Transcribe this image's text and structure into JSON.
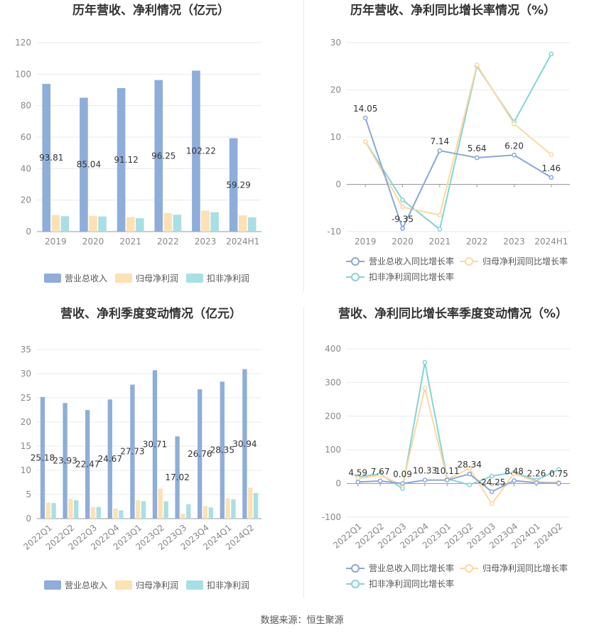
{
  "source_text": "数据来源：恒生聚源",
  "colors": {
    "revenue": "#8eadd9",
    "parent_net": "#fce1b3",
    "deducted_net": "#a8dfe4",
    "revenue_line": "#8aa8d8",
    "parent_line": "#fbd9a0",
    "deducted_line": "#85d3d6"
  },
  "chart_data": [
    {
      "type": "bar",
      "title": "历年营收、净利情况（亿元）",
      "categories": [
        "2019",
        "2020",
        "2021",
        "2022",
        "2023",
        "2024H1"
      ],
      "ylim": [
        0,
        120
      ],
      "yticks": [
        0,
        20,
        40,
        60,
        80,
        100,
        120
      ],
      "series": [
        {
          "name": "营业总收入",
          "values": [
            93.81,
            85.04,
            91.12,
            96.25,
            102.22,
            59.29
          ],
          "labels": [
            "93.81",
            "85.04",
            "91.12",
            "96.25",
            "102.22",
            "59.29"
          ]
        },
        {
          "name": "归母净利润",
          "values": [
            10.5,
            10.0,
            9.2,
            11.8,
            13.3,
            10.3
          ]
        },
        {
          "name": "扣非净利润",
          "values": [
            9.8,
            9.6,
            8.5,
            10.7,
            12.3,
            9.1
          ]
        }
      ],
      "grid": true,
      "legend": "bottom"
    },
    {
      "type": "line",
      "title": "历年营收、净利同比增长率情况（%）",
      "categories": [
        "2019",
        "2020",
        "2021",
        "2022",
        "2023",
        "2024H1"
      ],
      "ylim": [
        -10,
        30
      ],
      "yticks": [
        -10,
        0,
        10,
        20,
        30
      ],
      "series": [
        {
          "name": "营业总收入同比增长率",
          "values": [
            14.05,
            -9.35,
            7.14,
            5.64,
            6.2,
            1.46
          ],
          "labels": [
            "14.05",
            "-9.35",
            "7.14",
            "5.64",
            "6.20",
            "1.46"
          ]
        },
        {
          "name": "归母净利润同比增长率",
          "values": [
            9.0,
            -4.8,
            -6.5,
            25.3,
            12.8,
            6.3
          ]
        },
        {
          "name": "扣非净利润同比增长率",
          "values": [
            9.0,
            -3.3,
            -9.5,
            25.0,
            13.2,
            27.6
          ]
        }
      ],
      "grid": true,
      "legend": "bottom"
    },
    {
      "type": "bar",
      "title": "营收、净利季度变动情况（亿元）",
      "categories": [
        "2022Q1",
        "2022Q2",
        "2022Q3",
        "2022Q4",
        "2023Q1",
        "2023Q2",
        "2023Q3",
        "2023Q4",
        "2024Q1",
        "2024Q2"
      ],
      "ylim": [
        0,
        35
      ],
      "yticks": [
        0,
        5,
        10,
        15,
        20,
        25,
        30,
        35
      ],
      "series": [
        {
          "name": "营业总收入",
          "values": [
            25.18,
            23.93,
            22.47,
            24.67,
            27.73,
            30.71,
            17.02,
            26.76,
            28.35,
            30.94
          ],
          "labels": [
            "25.18",
            "23.93",
            "22.47",
            "24.67",
            "27.73",
            "30.71",
            "17.02",
            "26.76",
            "28.35",
            "30.94"
          ]
        },
        {
          "name": "归母净利润",
          "values": [
            3.3,
            4.1,
            2.4,
            2.1,
            3.8,
            6.2,
            1.0,
            2.6,
            4.2,
            6.4
          ]
        },
        {
          "name": "扣非净利润",
          "values": [
            3.2,
            3.8,
            2.4,
            1.7,
            3.6,
            3.6,
            3.0,
            2.3,
            4.0,
            5.3
          ]
        }
      ],
      "grid": true,
      "legend": "bottom"
    },
    {
      "type": "line",
      "title": "营收、净利同比增长率季度变动情况（%）",
      "categories": [
        "2022Q1",
        "2022Q2",
        "2022Q3",
        "2022Q4",
        "2023Q1",
        "2023Q2",
        "2023Q3",
        "2023Q4",
        "2024Q1",
        "2024Q2"
      ],
      "ylim": [
        -100,
        400
      ],
      "yticks": [
        -100,
        0,
        100,
        200,
        300,
        400
      ],
      "series": [
        {
          "name": "营业总收入同比增长率",
          "values": [
            4.59,
            7.67,
            0.09,
            10.33,
            10.11,
            28.34,
            -24.25,
            8.48,
            2.26,
            0.75
          ],
          "labels": [
            "4.59",
            "7.67",
            "0.09",
            "10.33",
            "10.11",
            "28.34",
            "-24.25",
            "8.48",
            "2.26",
            "0.75"
          ]
        },
        {
          "name": "归母净利润同比增长率",
          "values": [
            15,
            25,
            -5,
            283,
            12,
            45,
            -60,
            30,
            5,
            3
          ]
        },
        {
          "name": "扣非净利润同比增长率",
          "values": [
            20,
            28,
            -15,
            360,
            14,
            -4,
            22,
            33,
            10,
            42
          ]
        }
      ],
      "grid": true,
      "legend": "bottom"
    }
  ]
}
